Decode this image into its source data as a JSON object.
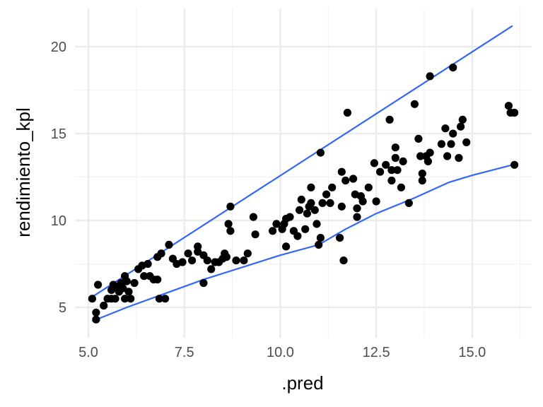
{
  "chart_data": {
    "type": "scatter",
    "title": "",
    "xlabel": ".pred",
    "ylabel": "rendimiento_kpl",
    "xlim": [
      4.65,
      16.55
    ],
    "ylim": [
      3.25,
      22.2
    ],
    "x_ticks": [
      5.0,
      7.5,
      10.0,
      12.5,
      15.0
    ],
    "x_tick_labels": [
      "5.0",
      "7.5",
      "10.0",
      "12.5",
      "15.0"
    ],
    "y_ticks": [
      5,
      10,
      15,
      20
    ],
    "y_tick_labels": [
      "5",
      "10",
      "15",
      "20"
    ],
    "grid": true,
    "legend": "none",
    "point_color": "#000000",
    "line_color": "#3366ff",
    "points": [
      [
        5.1,
        5.5
      ],
      [
        5.2,
        4.7
      ],
      [
        5.2,
        4.3
      ],
      [
        5.25,
        6.3
      ],
      [
        5.4,
        5.1
      ],
      [
        5.5,
        5.5
      ],
      [
        5.6,
        5.5
      ],
      [
        5.6,
        6.0
      ],
      [
        5.65,
        6.3
      ],
      [
        5.7,
        5.5
      ],
      [
        5.75,
        6.2
      ],
      [
        5.8,
        5.9
      ],
      [
        5.85,
        6.4
      ],
      [
        5.9,
        6.1
      ],
      [
        5.95,
        5.5
      ],
      [
        5.95,
        6.8
      ],
      [
        6.0,
        6.5
      ],
      [
        6.05,
        5.9
      ],
      [
        6.1,
        5.5
      ],
      [
        6.2,
        6.4
      ],
      [
        6.3,
        7.2
      ],
      [
        6.4,
        7.4
      ],
      [
        6.45,
        6.8
      ],
      [
        6.55,
        7.5
      ],
      [
        6.6,
        6.8
      ],
      [
        6.7,
        6.6
      ],
      [
        6.8,
        6.6
      ],
      [
        6.8,
        7.9
      ],
      [
        6.85,
        5.5
      ],
      [
        6.9,
        8.1
      ],
      [
        7.0,
        5.5
      ],
      [
        7.1,
        8.6
      ],
      [
        7.2,
        7.8
      ],
      [
        7.3,
        7.5
      ],
      [
        7.45,
        7.6
      ],
      [
        7.6,
        8.1
      ],
      [
        7.7,
        7.7
      ],
      [
        7.85,
        8.2
      ],
      [
        7.85,
        8.5
      ],
      [
        8.0,
        8.0
      ],
      [
        8.0,
        6.4
      ],
      [
        8.1,
        7.7
      ],
      [
        8.2,
        7.2
      ],
      [
        8.3,
        7.6
      ],
      [
        8.4,
        7.6
      ],
      [
        8.5,
        7.8
      ],
      [
        8.55,
        8.1
      ],
      [
        8.6,
        7.9
      ],
      [
        8.65,
        9.8
      ],
      [
        8.7,
        9.4
      ],
      [
        8.7,
        10.8
      ],
      [
        8.85,
        7.7
      ],
      [
        9.05,
        7.7
      ],
      [
        9.15,
        8.1
      ],
      [
        9.3,
        10.2
      ],
      [
        9.35,
        9.2
      ],
      [
        9.8,
        9.4
      ],
      [
        9.9,
        9.8
      ],
      [
        10.05,
        9.5
      ],
      [
        10.15,
        8.5
      ],
      [
        10.1,
        9.8
      ],
      [
        10.15,
        10.1
      ],
      [
        10.25,
        10.2
      ],
      [
        10.35,
        9.4
      ],
      [
        10.45,
        9.1
      ],
      [
        10.5,
        10.6
      ],
      [
        10.55,
        11.2
      ],
      [
        10.65,
        9.5
      ],
      [
        10.7,
        10.4
      ],
      [
        10.75,
        10.8
      ],
      [
        10.8,
        11.0
      ],
      [
        10.8,
        11.9
      ],
      [
        10.9,
        10.6
      ],
      [
        10.95,
        9.8
      ],
      [
        11.0,
        8.6
      ],
      [
        11.05,
        9.0
      ],
      [
        11.05,
        13.9
      ],
      [
        11.1,
        11.0
      ],
      [
        11.2,
        11.5
      ],
      [
        11.3,
        11.0
      ],
      [
        11.35,
        11.9
      ],
      [
        11.55,
        9.0
      ],
      [
        11.6,
        12.8
      ],
      [
        11.6,
        10.8
      ],
      [
        11.65,
        7.7
      ],
      [
        11.7,
        12.3
      ],
      [
        11.75,
        16.2
      ],
      [
        11.9,
        12.4
      ],
      [
        11.95,
        11.5
      ],
      [
        12.0,
        10.7
      ],
      [
        12.0,
        10.2
      ],
      [
        12.1,
        11.4
      ],
      [
        12.15,
        11.1
      ],
      [
        12.3,
        11.9
      ],
      [
        12.45,
        13.3
      ],
      [
        12.5,
        11.1
      ],
      [
        12.6,
        12.8
      ],
      [
        12.75,
        13.2
      ],
      [
        12.85,
        15.8
      ],
      [
        12.9,
        12.3
      ],
      [
        12.9,
        12.9
      ],
      [
        13.0,
        13.6
      ],
      [
        13.0,
        14.2
      ],
      [
        13.05,
        12.9
      ],
      [
        13.15,
        11.9
      ],
      [
        13.2,
        13.4
      ],
      [
        13.35,
        11.0
      ],
      [
        13.5,
        16.7
      ],
      [
        13.6,
        14.7
      ],
      [
        13.65,
        13.7
      ],
      [
        13.7,
        12.7
      ],
      [
        13.7,
        12.3
      ],
      [
        13.8,
        13.7
      ],
      [
        13.85,
        13.4
      ],
      [
        13.9,
        13.9
      ],
      [
        13.9,
        18.3
      ],
      [
        14.2,
        14.4
      ],
      [
        14.3,
        15.3
      ],
      [
        14.35,
        13.7
      ],
      [
        14.45,
        14.4
      ],
      [
        14.5,
        15.0
      ],
      [
        14.5,
        18.8
      ],
      [
        14.65,
        13.6
      ],
      [
        14.7,
        15.4
      ],
      [
        14.75,
        15.8
      ],
      [
        14.85,
        14.5
      ],
      [
        15.95,
        16.6
      ],
      [
        16.0,
        16.2
      ],
      [
        16.1,
        16.2
      ],
      [
        16.1,
        13.2
      ]
    ],
    "series": [
      {
        "x": [
          5.1,
          16.05
        ],
        "y": [
          5.6,
          21.2
        ]
      },
      {
        "x": [
          5.1,
          6.0,
          7.0,
          8.0,
          9.0,
          10.0,
          11.0,
          11.7,
          12.5,
          13.5,
          14.4,
          15.0,
          16.05
        ],
        "y": [
          4.2,
          5.0,
          5.8,
          6.6,
          7.3,
          8.0,
          8.6,
          9.5,
          10.4,
          11.3,
          12.2,
          12.6,
          13.2
        ]
      }
    ]
  }
}
